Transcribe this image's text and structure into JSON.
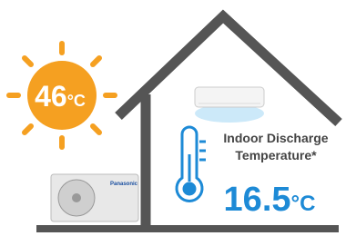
{
  "outdoor_temperature": {
    "value": "46",
    "unit": "°C"
  },
  "outdoor_unit_brand": "Panasonic",
  "indoor_label": {
    "line1": "Indoor Discharge",
    "line2": "Temperature*"
  },
  "indoor_temperature": {
    "value": "16.5",
    "unit": "°C"
  }
}
